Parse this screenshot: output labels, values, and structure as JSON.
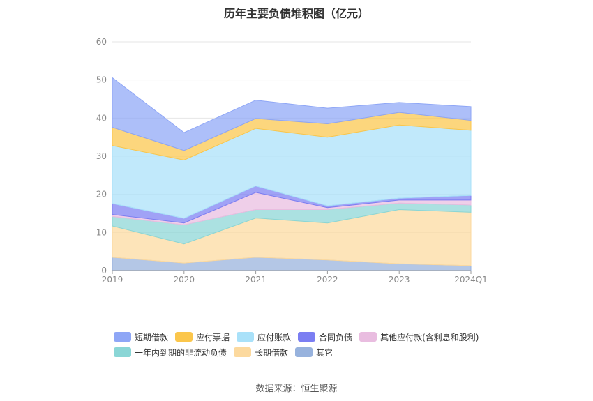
{
  "title": "历年主要负债堆积图（亿元）",
  "source": "数据来源：恒生聚源",
  "chart_data": {
    "type": "area",
    "stacked": true,
    "x": [
      "2019",
      "2020",
      "2021",
      "2022",
      "2023",
      "2024Q1"
    ],
    "ylim": [
      0,
      60
    ],
    "yticks": [
      0,
      10,
      20,
      30,
      40,
      50,
      60
    ],
    "grid": true,
    "legend_position": "bottom",
    "series": [
      {
        "name": "其它",
        "color": "#97b2dd",
        "values": [
          3.5,
          2.0,
          3.5,
          2.8,
          1.8,
          1.3
        ]
      },
      {
        "name": "长期借款",
        "color": "#fcd99e",
        "values": [
          8.2,
          5.0,
          10.3,
          9.7,
          14.2,
          14.0
        ]
      },
      {
        "name": "一年内到期的非流动负债",
        "color": "#8ad6d6",
        "values": [
          2.5,
          5.0,
          2.2,
          3.5,
          1.7,
          1.9
        ]
      },
      {
        "name": "其他应付款(含利息和股利)",
        "color": "#e9bde0",
        "values": [
          0.5,
          0.5,
          4.5,
          0.5,
          0.8,
          1.3
        ]
      },
      {
        "name": "合同负债",
        "color": "#7b7ef2",
        "values": [
          2.9,
          1.2,
          1.7,
          0.5,
          0.5,
          1.2
        ]
      },
      {
        "name": "应付账款",
        "color": "#a9e1f9",
        "values": [
          15.2,
          15.3,
          15.1,
          18.0,
          19.2,
          17.1
        ]
      },
      {
        "name": "应付票据",
        "color": "#fbc64b",
        "values": [
          4.8,
          2.5,
          2.6,
          3.5,
          3.3,
          2.6
        ]
      },
      {
        "name": "短期借款",
        "color": "#8ea6f6",
        "values": [
          13.0,
          4.7,
          4.8,
          4.1,
          2.6,
          3.6
        ]
      }
    ]
  },
  "legend_rows": [
    [
      {
        "name": "短期借款",
        "color": "#8ea6f6"
      },
      {
        "name": "应付票据",
        "color": "#fbc64b"
      },
      {
        "name": "应付账款",
        "color": "#a9e1f9"
      },
      {
        "name": "合同负债",
        "color": "#7b7ef2"
      },
      {
        "name": "其他应付款(含利息和股利)",
        "color": "#e9bde0"
      }
    ],
    [
      {
        "name": "一年内到期的非流动负债",
        "color": "#8ad6d6"
      },
      {
        "name": "长期借款",
        "color": "#fcd99e"
      },
      {
        "name": "其它",
        "color": "#97b2dd"
      }
    ]
  ]
}
